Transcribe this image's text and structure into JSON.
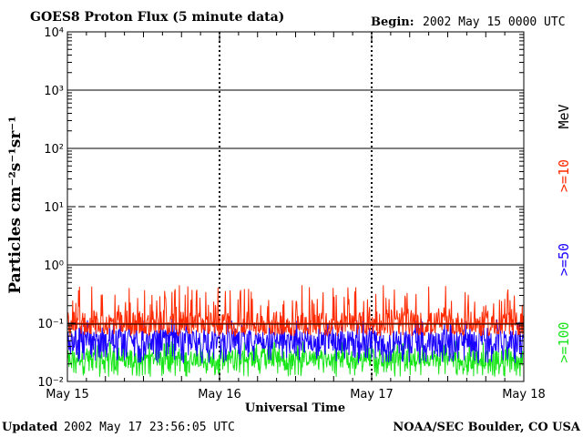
{
  "header": {
    "title": "GOES8 Proton Flux (5 minute data)",
    "begin_label": "Begin:",
    "begin_value": "2002 May 15 0000 UTC"
  },
  "footer": {
    "updated_label": "Updated",
    "updated_value": "2002 May 17 23:56:05 UTC",
    "credit": "NOAA/SEC Boulder, CO USA"
  },
  "colors": {
    "ge10": "#ff2a00",
    "ge50": "#1a00ff",
    "ge100": "#19e619",
    "background": "#ffffff",
    "axes": "#000000"
  },
  "chart_data": {
    "type": "line",
    "title": "GOES8 Proton Flux (5 minute data)",
    "xlabel": "Universal Time",
    "ylabel": "Particles cm⁻²s⁻¹sr⁻¹",
    "yscale": "log",
    "ylim": [
      0.01,
      10000
    ],
    "y_tick_labels": [
      "10⁻²",
      "10⁻¹",
      "10⁰",
      "10¹",
      "10²",
      "10³",
      "10⁴"
    ],
    "x_tick_labels": [
      "May 15",
      "May 16",
      "May 17",
      "May 18"
    ],
    "xlim_days": [
      0,
      3
    ],
    "threshold_lines": [
      {
        "value": 10,
        "style": "dashed"
      },
      {
        "value": 0.1,
        "style": "solid",
        "color": "#ff2a00"
      }
    ],
    "grid": "horizontal decade lines, vertical dashed day separators",
    "legend_unit": "MeV",
    "series": [
      {
        "name": ">=10",
        "color": "#ff2a00",
        "typical": 0.1,
        "range": [
          0.06,
          0.45
        ]
      },
      {
        "name": ">=50",
        "color": "#1a00ff",
        "typical": 0.05,
        "range": [
          0.02,
          0.12
        ]
      },
      {
        "name": ">=100",
        "color": "#19e619",
        "typical": 0.025,
        "range": [
          0.012,
          0.05
        ]
      }
    ]
  }
}
